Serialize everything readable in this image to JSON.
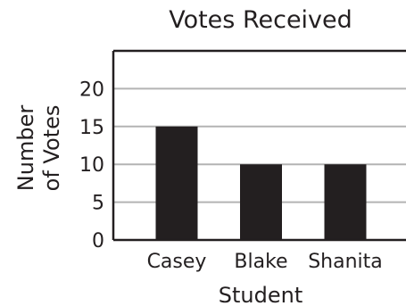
{
  "chart_data": {
    "type": "bar",
    "title": "Votes Received",
    "xlabel": "Student",
    "ylabel_lines": [
      "Number",
      "of Votes"
    ],
    "categories": [
      "Casey",
      "Blake",
      "Shanita"
    ],
    "values": [
      15,
      10,
      10
    ],
    "ylim": [
      0,
      25
    ],
    "yticks": [
      0,
      5,
      10,
      15,
      20
    ],
    "grid": true,
    "legend": "none",
    "bar_color": "#231f20",
    "grid_color": "#b3b3b3",
    "axis_color": "#231f20"
  }
}
